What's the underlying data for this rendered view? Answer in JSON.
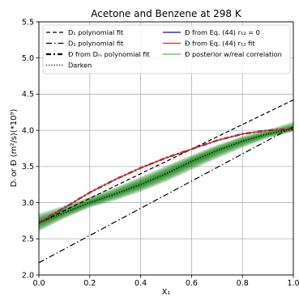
{
  "chart_data": {
    "type": "line",
    "title": "Acetone and Benzene at 298 K",
    "xlabel": "X₁",
    "ylabel": "Dᵢ or Đ (m²/s)(*10⁹)",
    "xlim": [
      0.0,
      1.0
    ],
    "ylim": [
      2.0,
      5.5
    ],
    "x_ticks": [
      "0.0",
      "0.2",
      "0.4",
      "0.6",
      "0.8",
      "1.0"
    ],
    "y_ticks": [
      "2.0",
      "2.5",
      "3.0",
      "3.5",
      "4.0",
      "4.5",
      "5.0",
      "5.5"
    ],
    "grid": true,
    "legend_placement": "top",
    "series": [
      {
        "name": "D₁ polynomial fit",
        "style": "dashed",
        "color": "#000000",
        "x": [
          0.0,
          0.5,
          1.0
        ],
        "y": [
          2.72,
          3.57,
          4.42
        ]
      },
      {
        "name": "D₂ polynomial fit",
        "style": "dashdot",
        "color": "#000000",
        "x": [
          0.0,
          0.5,
          1.0
        ],
        "y": [
          2.17,
          3.11,
          4.05
        ]
      },
      {
        "name": "Đ from Dₘ polynomial fit",
        "style": "dashdot-thick",
        "color": "#000000",
        "x": [
          0.0,
          0.1,
          0.2,
          0.3,
          0.4,
          0.5,
          0.6,
          0.7,
          0.8,
          0.9,
          1.0
        ],
        "y": [
          2.72,
          2.93,
          3.14,
          3.32,
          3.48,
          3.62,
          3.74,
          3.86,
          3.95,
          4.0,
          4.02
        ]
      },
      {
        "name": "Darken",
        "style": "dotted",
        "color": "#000000",
        "x": [
          0.0,
          0.1,
          0.2,
          0.3,
          0.4,
          0.5,
          0.6,
          0.7,
          0.8,
          0.9,
          1.0
        ],
        "y": [
          2.72,
          2.86,
          3.0,
          3.12,
          3.25,
          3.4,
          3.57,
          3.72,
          3.85,
          3.95,
          4.02
        ]
      },
      {
        "name": "Đ from Eq. (44) r₁₂ = 0",
        "style": "solid",
        "color": "#0000cc",
        "x": [
          0.0,
          0.1,
          0.2,
          0.3,
          0.4,
          0.5,
          0.6,
          0.7,
          0.8,
          0.9,
          1.0
        ],
        "y": [
          2.72,
          2.93,
          3.14,
          3.32,
          3.48,
          3.62,
          3.74,
          3.86,
          3.95,
          4.0,
          4.02
        ]
      },
      {
        "name": "Đ from Eq. (44) r₁₂ fit",
        "style": "solid",
        "color": "#e0302a",
        "x": [
          0.0,
          0.1,
          0.2,
          0.3,
          0.4,
          0.5,
          0.6,
          0.7,
          0.8,
          0.9,
          1.0
        ],
        "y": [
          2.72,
          2.93,
          3.14,
          3.32,
          3.48,
          3.62,
          3.74,
          3.86,
          3.95,
          4.0,
          4.02
        ]
      },
      {
        "name": "Đ posterior w/real correlation",
        "style": "band",
        "color": "#2ca02c",
        "band_color": "#0a7a0a",
        "x": [
          0.0,
          0.1,
          0.2,
          0.3,
          0.4,
          0.5,
          0.6,
          0.7,
          0.8,
          0.9,
          1.0
        ],
        "y": [
          2.72,
          2.86,
          3.0,
          3.12,
          3.25,
          3.4,
          3.57,
          3.72,
          3.85,
          3.95,
          4.02
        ],
        "lower": [
          2.6,
          2.78,
          2.93,
          3.03,
          3.15,
          3.29,
          3.45,
          3.61,
          3.76,
          3.89,
          3.98
        ],
        "upper": [
          2.85,
          2.96,
          3.08,
          3.21,
          3.36,
          3.51,
          3.66,
          3.8,
          3.92,
          4.01,
          4.12
        ]
      }
    ]
  }
}
